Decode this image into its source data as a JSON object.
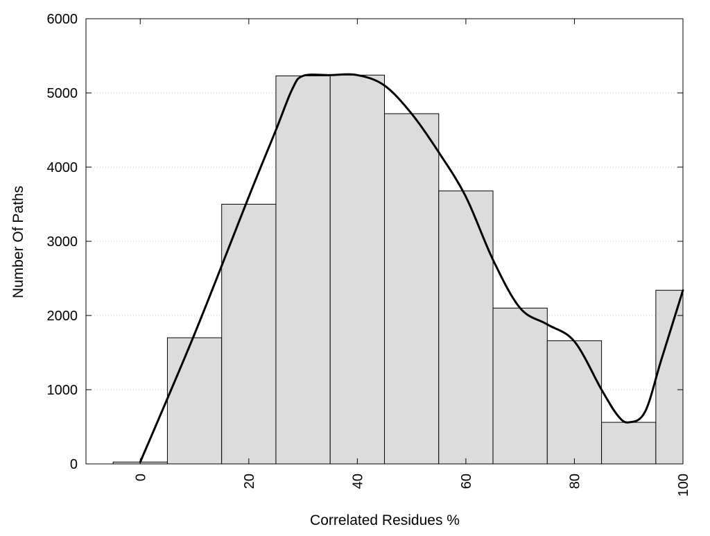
{
  "chart_data": {
    "type": "bar",
    "title": "",
    "xlabel": "Correlated Residues %",
    "ylabel": "Number Of Paths",
    "bin_width": 10,
    "bins": [
      {
        "center": 0,
        "value": 25
      },
      {
        "center": 10,
        "value": 1700
      },
      {
        "center": 20,
        "value": 3500
      },
      {
        "center": 30,
        "value": 5230
      },
      {
        "center": 40,
        "value": 5240
      },
      {
        "center": 50,
        "value": 4720
      },
      {
        "center": 60,
        "value": 3680
      },
      {
        "center": 70,
        "value": 2100
      },
      {
        "center": 80,
        "value": 1660
      },
      {
        "center": 90,
        "value": 560
      },
      {
        "center": 100,
        "value": 2340
      }
    ],
    "curve": {
      "x": [
        0,
        10,
        20,
        25,
        28,
        30,
        35,
        40,
        45,
        50,
        55,
        60,
        65,
        70,
        75,
        80,
        85,
        88,
        90,
        93,
        96,
        100
      ],
      "y": [
        25,
        1750,
        3600,
        4500,
        5050,
        5230,
        5240,
        5240,
        5100,
        4720,
        4200,
        3600,
        2750,
        2100,
        1880,
        1650,
        1000,
        650,
        560,
        700,
        1400,
        2340
      ]
    },
    "xlim": [
      -10,
      100
    ],
    "ylim": [
      0,
      6000
    ],
    "xticks": [
      "0",
      "20",
      "40",
      "60",
      "80",
      "100"
    ],
    "xtick_values": [
      0,
      20,
      40,
      60,
      80,
      100
    ],
    "yticks": [
      "0",
      "1000",
      "2000",
      "3000",
      "4000",
      "5000",
      "6000"
    ],
    "ytick_values": [
      0,
      1000,
      2000,
      3000,
      4000,
      5000,
      6000
    ],
    "grid": "horizontal-dotted",
    "colors": {
      "bar_fill": "#dcdcdc",
      "bar_stroke": "#000000",
      "curve": "#000000",
      "grid": "#c8c8c8"
    }
  }
}
